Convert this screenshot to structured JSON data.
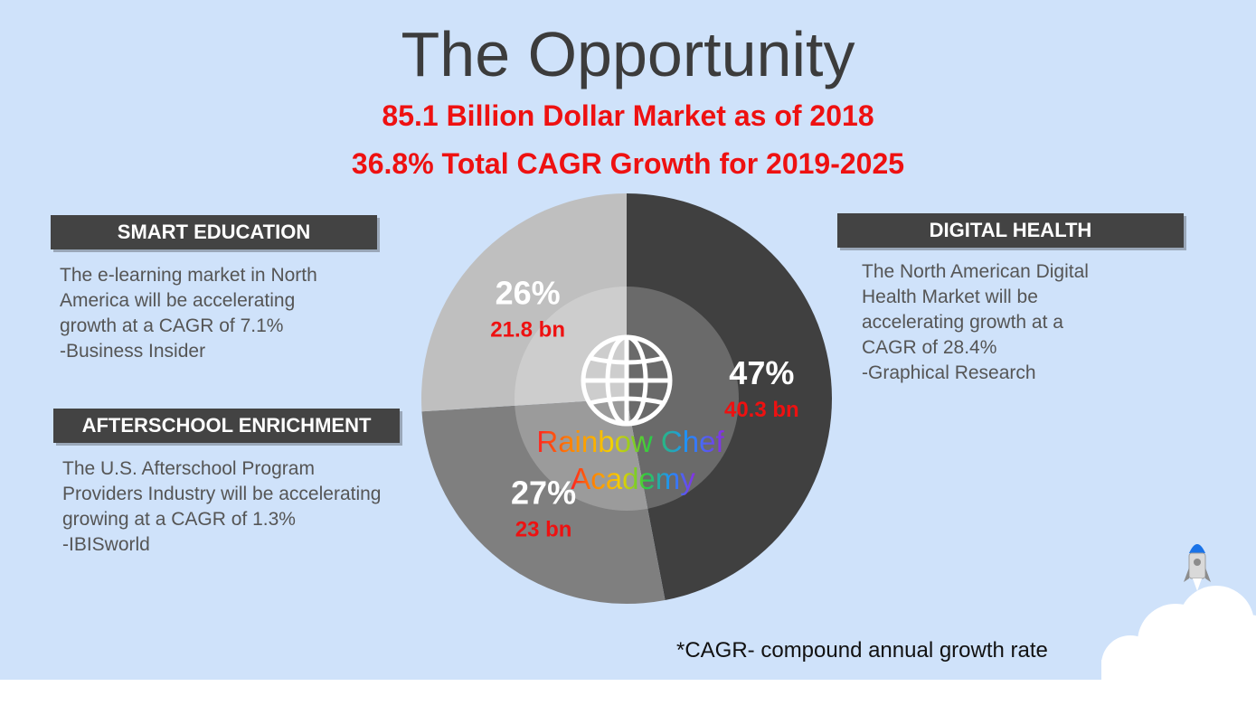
{
  "title": "The Opportunity",
  "subtitle_lines": [
    "85.1 Billion Dollar Market as of 2018",
    "36.8% Total CAGR Growth for 2019-2025"
  ],
  "sections": {
    "smart_education": {
      "header": "SMART EDUCATION",
      "lines": [
        "The e-learning market in North",
        "America will be accelerating",
        "growth at a CAGR of 7.1%",
        "-Business Insider"
      ]
    },
    "afterschool": {
      "header": "AFTERSCHOOL ENRICHMENT",
      "lines": [
        "The U.S. Afterschool Program",
        "Providers Industry will be accelerating",
        "growing at a CAGR of 1.3%",
        "-IBISworld"
      ]
    },
    "digital_health": {
      "header": "DIGITAL HEALTH",
      "lines": [
        "The North American Digital",
        "Health Market will be",
        "accelerating growth at a",
        "CAGR of 28.4%",
        "-Graphical Research"
      ]
    }
  },
  "logo": {
    "text_lines": [
      "Rainbow Chef",
      "Academy"
    ],
    "icon": "globe-icon",
    "rainbow_colors": [
      "#ff2020",
      "#ff8c00",
      "#f5d000",
      "#2ecc40",
      "#1e90ff",
      "#8a2be2"
    ]
  },
  "chart_data": {
    "type": "pie",
    "title": "",
    "slices": [
      {
        "label": "47%",
        "percent": 47,
        "value_label": "40.3 bn",
        "value": 40.3,
        "color": "#404040"
      },
      {
        "label": "27%",
        "percent": 27,
        "value_label": "23 bn",
        "value": 23,
        "color": "#7f7f7f"
      },
      {
        "label": "26%",
        "percent": 26,
        "value_label": "21.8 bn",
        "value": 21.8,
        "color": "#bfbfbf"
      }
    ],
    "center_circle": true
  },
  "footnote": "*CAGR- compound annual growth rate",
  "decor": {
    "rocket_icon": "rocket-icon",
    "cloud_icon": "cloud-icon",
    "accent_color": "#ee1111",
    "background_color": "#cfe2fa"
  }
}
